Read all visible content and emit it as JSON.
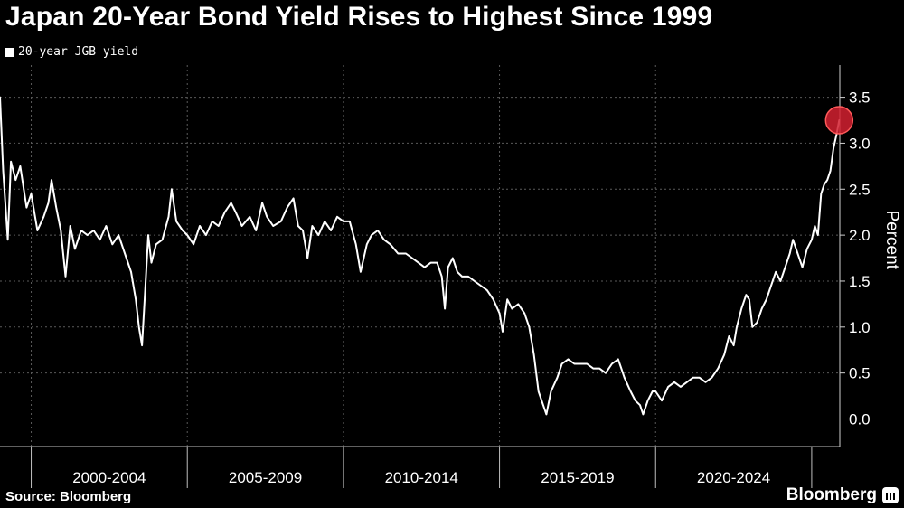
{
  "chart_data": {
    "type": "line",
    "title": "Japan 20-Year Bond Yield Rises to Highest Since 1999",
    "legend": "20-year JGB yield",
    "ylabel": "Percent",
    "xlabel": "",
    "ylim": [
      -0.3,
      3.85
    ],
    "xlim": [
      1999.0,
      2025.9
    ],
    "y_ticks": [
      0.0,
      0.5,
      1.0,
      1.5,
      2.0,
      2.5,
      3.0,
      3.5
    ],
    "y_tick_labels": [
      "0.0",
      "0.5",
      "1.0",
      "1.5",
      "2.0",
      "2.5",
      "3.0",
      "3.5"
    ],
    "x_periods": [
      {
        "label": "2000-2004",
        "start": 2000,
        "end": 2005
      },
      {
        "label": "2005-2009",
        "start": 2005,
        "end": 2010
      },
      {
        "label": "2010-2014",
        "start": 2010,
        "end": 2015
      },
      {
        "label": "2015-2019",
        "start": 2015,
        "end": 2020
      },
      {
        "label": "2020-2024",
        "start": 2020,
        "end": 2025
      }
    ],
    "grid": true,
    "legend_position": "top-left",
    "series": [
      {
        "name": "20-year JGB yield",
        "color": "#ffffff",
        "points": [
          [
            1999.0,
            3.5
          ],
          [
            1999.1,
            2.7
          ],
          [
            1999.25,
            1.95
          ],
          [
            1999.35,
            2.8
          ],
          [
            1999.5,
            2.6
          ],
          [
            1999.65,
            2.75
          ],
          [
            1999.85,
            2.3
          ],
          [
            2000.0,
            2.45
          ],
          [
            2000.2,
            2.05
          ],
          [
            2000.4,
            2.2
          ],
          [
            2000.55,
            2.35
          ],
          [
            2000.65,
            2.6
          ],
          [
            2000.8,
            2.3
          ],
          [
            2000.95,
            2.05
          ],
          [
            2001.1,
            1.55
          ],
          [
            2001.25,
            2.1
          ],
          [
            2001.4,
            1.85
          ],
          [
            2001.6,
            2.05
          ],
          [
            2001.8,
            2.0
          ],
          [
            2002.0,
            2.05
          ],
          [
            2002.2,
            1.95
          ],
          [
            2002.4,
            2.1
          ],
          [
            2002.6,
            1.9
          ],
          [
            2002.8,
            2.0
          ],
          [
            2003.0,
            1.8
          ],
          [
            2003.2,
            1.6
          ],
          [
            2003.35,
            1.3
          ],
          [
            2003.45,
            1.0
          ],
          [
            2003.55,
            0.8
          ],
          [
            2003.65,
            1.4
          ],
          [
            2003.75,
            2.0
          ],
          [
            2003.85,
            1.7
          ],
          [
            2004.0,
            1.9
          ],
          [
            2004.2,
            1.95
          ],
          [
            2004.4,
            2.2
          ],
          [
            2004.5,
            2.5
          ],
          [
            2004.65,
            2.15
          ],
          [
            2004.85,
            2.05
          ],
          [
            2005.0,
            2.0
          ],
          [
            2005.2,
            1.9
          ],
          [
            2005.4,
            2.1
          ],
          [
            2005.6,
            2.0
          ],
          [
            2005.8,
            2.15
          ],
          [
            2006.0,
            2.1
          ],
          [
            2006.2,
            2.25
          ],
          [
            2006.4,
            2.35
          ],
          [
            2006.55,
            2.25
          ],
          [
            2006.75,
            2.1
          ],
          [
            2007.0,
            2.2
          ],
          [
            2007.2,
            2.05
          ],
          [
            2007.4,
            2.35
          ],
          [
            2007.55,
            2.2
          ],
          [
            2007.75,
            2.1
          ],
          [
            2008.0,
            2.15
          ],
          [
            2008.2,
            2.3
          ],
          [
            2008.4,
            2.4
          ],
          [
            2008.55,
            2.1
          ],
          [
            2008.7,
            2.05
          ],
          [
            2008.85,
            1.75
          ],
          [
            2009.0,
            2.1
          ],
          [
            2009.2,
            2.0
          ],
          [
            2009.4,
            2.15
          ],
          [
            2009.6,
            2.05
          ],
          [
            2009.8,
            2.2
          ],
          [
            2010.0,
            2.15
          ],
          [
            2010.2,
            2.15
          ],
          [
            2010.4,
            1.9
          ],
          [
            2010.55,
            1.6
          ],
          [
            2010.75,
            1.9
          ],
          [
            2010.9,
            2.0
          ],
          [
            2011.1,
            2.05
          ],
          [
            2011.3,
            1.95
          ],
          [
            2011.5,
            1.9
          ],
          [
            2011.75,
            1.8
          ],
          [
            2012.0,
            1.8
          ],
          [
            2012.2,
            1.75
          ],
          [
            2012.4,
            1.7
          ],
          [
            2012.6,
            1.65
          ],
          [
            2012.8,
            1.7
          ],
          [
            2013.0,
            1.7
          ],
          [
            2013.15,
            1.55
          ],
          [
            2013.25,
            1.2
          ],
          [
            2013.35,
            1.65
          ],
          [
            2013.5,
            1.75
          ],
          [
            2013.65,
            1.6
          ],
          [
            2013.8,
            1.55
          ],
          [
            2014.0,
            1.55
          ],
          [
            2014.2,
            1.5
          ],
          [
            2014.4,
            1.45
          ],
          [
            2014.6,
            1.4
          ],
          [
            2014.8,
            1.3
          ],
          [
            2015.0,
            1.15
          ],
          [
            2015.1,
            0.95
          ],
          [
            2015.25,
            1.3
          ],
          [
            2015.4,
            1.2
          ],
          [
            2015.6,
            1.25
          ],
          [
            2015.8,
            1.15
          ],
          [
            2015.95,
            1.0
          ],
          [
            2016.1,
            0.7
          ],
          [
            2016.25,
            0.3
          ],
          [
            2016.4,
            0.15
          ],
          [
            2016.5,
            0.05
          ],
          [
            2016.65,
            0.3
          ],
          [
            2016.85,
            0.45
          ],
          [
            2017.0,
            0.6
          ],
          [
            2017.2,
            0.65
          ],
          [
            2017.4,
            0.6
          ],
          [
            2017.6,
            0.6
          ],
          [
            2017.8,
            0.6
          ],
          [
            2018.0,
            0.55
          ],
          [
            2018.2,
            0.55
          ],
          [
            2018.4,
            0.5
          ],
          [
            2018.6,
            0.6
          ],
          [
            2018.8,
            0.65
          ],
          [
            2018.9,
            0.55
          ],
          [
            2019.0,
            0.45
          ],
          [
            2019.2,
            0.3
          ],
          [
            2019.35,
            0.2
          ],
          [
            2019.5,
            0.15
          ],
          [
            2019.6,
            0.05
          ],
          [
            2019.75,
            0.2
          ],
          [
            2019.9,
            0.3
          ],
          [
            2020.0,
            0.3
          ],
          [
            2020.2,
            0.2
          ],
          [
            2020.4,
            0.35
          ],
          [
            2020.6,
            0.4
          ],
          [
            2020.8,
            0.35
          ],
          [
            2021.0,
            0.4
          ],
          [
            2021.2,
            0.45
          ],
          [
            2021.4,
            0.45
          ],
          [
            2021.6,
            0.4
          ],
          [
            2021.8,
            0.45
          ],
          [
            2022.0,
            0.55
          ],
          [
            2022.2,
            0.7
          ],
          [
            2022.35,
            0.9
          ],
          [
            2022.5,
            0.8
          ],
          [
            2022.6,
            1.0
          ],
          [
            2022.75,
            1.2
          ],
          [
            2022.9,
            1.35
          ],
          [
            2023.0,
            1.3
          ],
          [
            2023.1,
            1.0
          ],
          [
            2023.25,
            1.05
          ],
          [
            2023.4,
            1.2
          ],
          [
            2023.55,
            1.3
          ],
          [
            2023.7,
            1.45
          ],
          [
            2023.85,
            1.6
          ],
          [
            2024.0,
            1.5
          ],
          [
            2024.15,
            1.65
          ],
          [
            2024.3,
            1.8
          ],
          [
            2024.4,
            1.95
          ],
          [
            2024.55,
            1.8
          ],
          [
            2024.7,
            1.65
          ],
          [
            2024.85,
            1.85
          ],
          [
            2025.0,
            1.95
          ],
          [
            2025.1,
            2.1
          ],
          [
            2025.2,
            2.0
          ],
          [
            2025.3,
            2.45
          ],
          [
            2025.4,
            2.55
          ],
          [
            2025.5,
            2.6
          ],
          [
            2025.6,
            2.7
          ],
          [
            2025.7,
            2.95
          ],
          [
            2025.8,
            3.1
          ],
          [
            2025.88,
            3.25
          ]
        ]
      }
    ],
    "highlight": {
      "x": 2025.88,
      "y": 3.25,
      "color": "#d32030"
    }
  },
  "footer": {
    "source": "Source: Bloomberg",
    "brand": "Bloomberg"
  },
  "icons": {
    "brand": "bloomberg-logo-icon"
  }
}
